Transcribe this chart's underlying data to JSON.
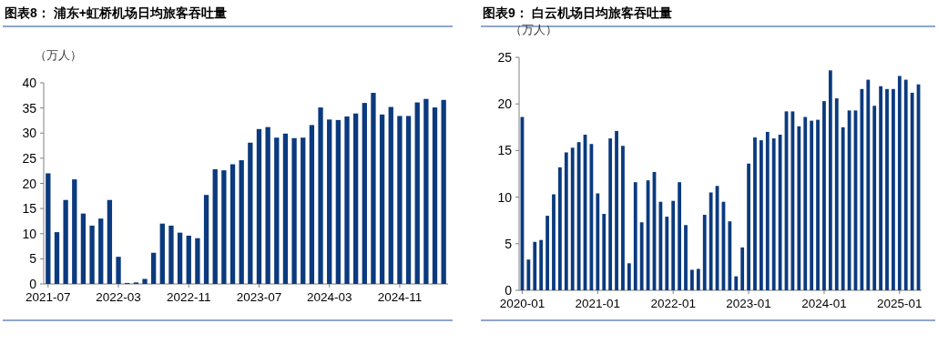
{
  "chart_data": [
    {
      "type": "bar",
      "title": "图表8：  浦东+虹桥机场日均旅客吞吐量",
      "ylabel": "（万人）",
      "categories": [
        "2021-07",
        null,
        null,
        null,
        null,
        null,
        null,
        null,
        "2022-03",
        null,
        null,
        null,
        null,
        null,
        null,
        null,
        "2022-11",
        null,
        null,
        null,
        null,
        null,
        null,
        null,
        "2023-07",
        null,
        null,
        null,
        null,
        null,
        null,
        null,
        "2024-03",
        null,
        null,
        null,
        null,
        null,
        null,
        null,
        "2024-11",
        null,
        null,
        null,
        null,
        null
      ],
      "values": [
        22,
        10.3,
        16.7,
        20.8,
        14,
        11.6,
        13,
        16.7,
        5.4,
        0.2,
        0.3,
        1.0,
        6.2,
        12,
        11.6,
        10.2,
        9.6,
        9.1,
        17.7,
        22.8,
        22.6,
        23.8,
        24.6,
        28.1,
        30.8,
        31.2,
        29.1,
        29.9,
        29.0,
        29.1,
        31.6,
        35.1,
        32.7,
        32.6,
        33.3,
        33.9,
        36.0,
        38.0,
        33.7,
        35.2,
        33.4,
        33.4,
        36.1,
        36.8,
        35.1,
        36.6
      ],
      "color": "#0b3a7e",
      "ylim": [
        0,
        40
      ],
      "yticks": [
        0,
        5,
        10,
        15,
        20,
        25,
        30,
        35,
        40
      ]
    },
    {
      "type": "bar",
      "title": "图表9：  白云机场日均旅客吞吐量",
      "ylabel": "（万人）",
      "categories": [
        "2020-01",
        null,
        null,
        null,
        null,
        null,
        null,
        null,
        null,
        null,
        null,
        null,
        "2021-01",
        null,
        null,
        null,
        null,
        null,
        null,
        null,
        null,
        null,
        null,
        null,
        "2022-01",
        null,
        null,
        null,
        null,
        null,
        null,
        null,
        null,
        null,
        null,
        null,
        "2023-01",
        null,
        null,
        null,
        null,
        null,
        null,
        null,
        null,
        null,
        null,
        null,
        "2024-01",
        null,
        null,
        null,
        null,
        null,
        null,
        null,
        null,
        null,
        null,
        null,
        "2025-01",
        null,
        null,
        null
      ],
      "values": [
        18.6,
        3.3,
        5.2,
        5.4,
        8.0,
        10.3,
        13.2,
        14.8,
        15.3,
        15.9,
        16.7,
        15.7,
        10.4,
        8.2,
        16.3,
        17.1,
        15.5,
        2.9,
        11.6,
        7.3,
        11.8,
        12.7,
        9.5,
        7.9,
        9.6,
        11.6,
        7.0,
        2.2,
        2.3,
        8.1,
        10.5,
        11.2,
        9.5,
        7.4,
        1.5,
        4.6,
        13.6,
        16.4,
        16.1,
        17.0,
        16.3,
        16.7,
        19.2,
        19.2,
        17.6,
        18.6,
        18.2,
        18.3,
        20.3,
        23.6,
        20.6,
        17.5,
        19.3,
        19.3,
        21.6,
        22.6,
        19.8,
        21.9,
        21.6,
        21.6,
        23.0,
        22.6,
        21.2,
        22.1
      ],
      "color": "#0b3a7e",
      "ylim": [
        0,
        25
      ],
      "yticks": [
        0,
        5,
        10,
        15,
        20,
        25
      ]
    }
  ]
}
